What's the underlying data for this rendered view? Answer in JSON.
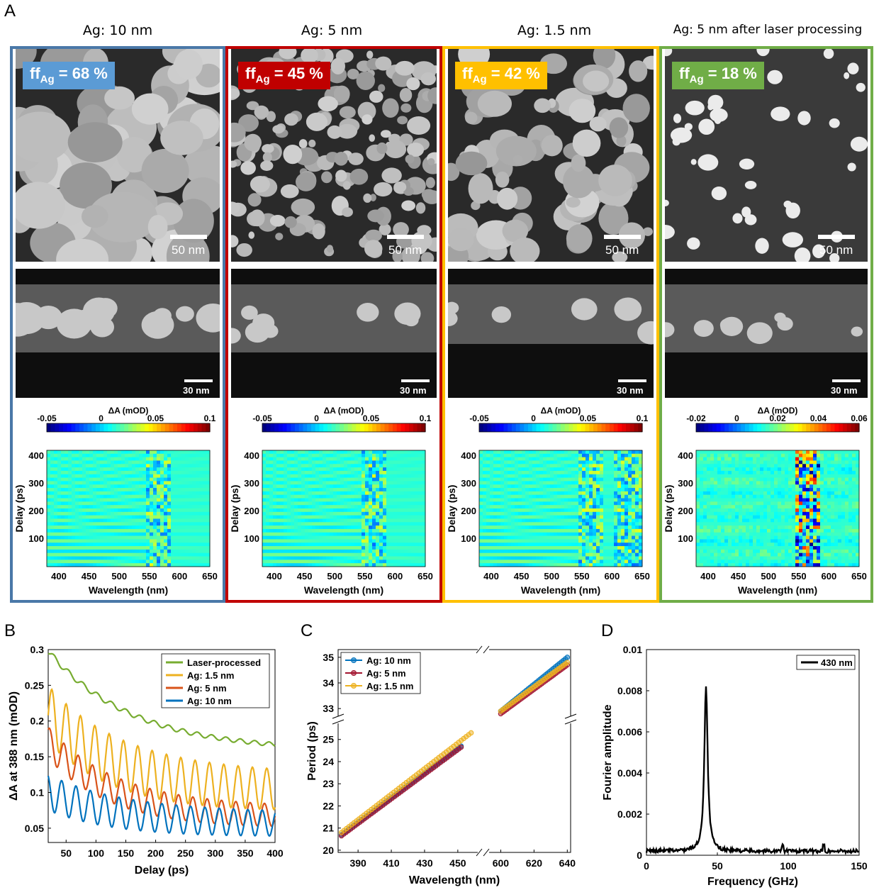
{
  "figure": {
    "panel_a_label": "A",
    "panel_b_label": "B",
    "panel_c_label": "C",
    "panel_d_label": "D"
  },
  "columns": [
    {
      "title": "Ag: 10 nm",
      "ff_label": "ff",
      "ff_sub": "Ag",
      "ff_value": " = 68 %",
      "color": "#4a78a8",
      "badge_color": "#5b9bd5",
      "sem_scale": "50 nm",
      "tem_scale": "30 nm",
      "cbar_label": "ΔA (mOD)",
      "cbar_ticks": [
        "-0.05",
        "0",
        "0.05",
        "0.1"
      ],
      "ylabel": "Delay (ps)",
      "xlabel": "Wavelength (nm)",
      "yticks": [
        "400",
        "300",
        "200",
        "100"
      ],
      "xticks": [
        "400",
        "450",
        "500",
        "550",
        "600",
        "650"
      ]
    },
    {
      "title": "Ag: 5 nm",
      "ff_label": "ff",
      "ff_sub": "Ag",
      "ff_value": " = 45 %",
      "color": "#c00000",
      "badge_color": "#c00000",
      "sem_scale": "50 nm",
      "tem_scale": "30 nm",
      "cbar_label": "ΔA (mOD)",
      "cbar_ticks": [
        "-0.05",
        "0",
        "0.05",
        "0.1"
      ],
      "ylabel": "Delay (ps)",
      "xlabel": "Wavelength (nm)",
      "yticks": [
        "400",
        "300",
        "200",
        "100"
      ],
      "xticks": [
        "400",
        "450",
        "500",
        "550",
        "600",
        "650"
      ]
    },
    {
      "title": "Ag: 1.5 nm",
      "ff_label": "ff",
      "ff_sub": "Ag",
      "ff_value": " = 42 %",
      "color": "#ffc000",
      "badge_color": "#ffc000",
      "sem_scale": "50 nm",
      "tem_scale": "30 nm",
      "cbar_label": "ΔA (mOD)",
      "cbar_ticks": [
        "-0.05",
        "0",
        "0.05",
        "0.1"
      ],
      "ylabel": "Delay (ps)",
      "xlabel": "Wavelength (nm)",
      "yticks": [
        "400",
        "300",
        "200",
        "100"
      ],
      "xticks": [
        "400",
        "450",
        "500",
        "550",
        "600",
        "650"
      ]
    },
    {
      "title": "Ag: 5 nm after laser processing",
      "ff_label": "ff",
      "ff_sub": "Ag",
      "ff_value": " = 18 %",
      "color": "#70ad47",
      "badge_color": "#70ad47",
      "sem_scale": "50 nm",
      "tem_scale": "30 nm",
      "cbar_label": "ΔA (mOD)",
      "cbar_ticks": [
        "-0.02",
        "0",
        "0.02",
        "0.04",
        "0.06"
      ],
      "ylabel": "Delay (ps)",
      "xlabel": "Wavelength (nm)",
      "yticks": [
        "400",
        "300",
        "200",
        "100"
      ],
      "xticks": [
        "400",
        "450",
        "500",
        "550",
        "600",
        "650"
      ]
    }
  ],
  "chart_data": [
    {
      "panel": "B",
      "type": "line",
      "xlabel": "Delay (ps)",
      "ylabel": "ΔA at 388 nm (mOD)",
      "xlim": [
        20,
        400
      ],
      "ylim": [
        0.03,
        0.3
      ],
      "xticks": [
        50,
        100,
        150,
        200,
        250,
        300,
        350,
        400
      ],
      "yticks": [
        0.05,
        0.1,
        0.15,
        0.2,
        0.25,
        0.3
      ],
      "ytick_labels": [
        "0.05",
        "0.1",
        "0.15",
        "0.2",
        "0.25",
        "0.3"
      ],
      "legend_position": "top-right",
      "period_ps": 24,
      "series": [
        {
          "name": "Laser-processed",
          "color": "#77ac30",
          "start": 0.298,
          "end": 0.158,
          "decay": 140,
          "osc_amp": 0.004
        },
        {
          "name": "Ag: 1.5 nm",
          "color": "#edb120",
          "start": 0.21,
          "end": 0.1,
          "decay": 120,
          "osc_amp": 0.04
        },
        {
          "name": "Ag: 5 nm",
          "color": "#d95319",
          "start": 0.17,
          "end": 0.065,
          "decay": 110,
          "osc_amp": 0.022
        },
        {
          "name": "Ag: 10 nm",
          "color": "#0072bd",
          "start": 0.1,
          "end": 0.055,
          "decay": 120,
          "osc_amp": 0.025
        }
      ]
    },
    {
      "panel": "C",
      "type": "scatter",
      "xlabel": "Wavelength (nm)",
      "ylabel": "Period (ps)",
      "xticks_left": [
        390,
        410,
        430,
        450
      ],
      "xticks_right": [
        600,
        620,
        640
      ],
      "yticks_lower": [
        20,
        21,
        22,
        23,
        24,
        25
      ],
      "yticks_upper": [
        33,
        34,
        35
      ],
      "legend_position": "top-left",
      "series": [
        {
          "name": "Ag: 10 nm",
          "color": "#0072bd",
          "left_x": [
            380,
            452
          ],
          "left_y": [
            20.7,
            24.7
          ],
          "right_x": [
            600,
            640
          ],
          "right_y": [
            32.9,
            35.0
          ]
        },
        {
          "name": "Ag: 5 nm",
          "color": "#a2142f",
          "left_x": [
            380,
            452
          ],
          "left_y": [
            20.65,
            24.65
          ],
          "right_x": [
            600,
            640
          ],
          "right_y": [
            32.8,
            34.7
          ]
        },
        {
          "name": "Ag: 1.5 nm",
          "color": "#edb120",
          "left_x": [
            380,
            458
          ],
          "left_y": [
            20.8,
            25.3
          ],
          "right_x": [
            600,
            640
          ],
          "right_y": [
            32.9,
            34.8
          ]
        }
      ]
    },
    {
      "panel": "D",
      "type": "line",
      "xlabel": "Frequency (GHz)",
      "ylabel": "Fourier amplitude",
      "xlim": [
        0,
        150
      ],
      "ylim": [
        0,
        0.01
      ],
      "xticks": [
        0,
        50,
        100,
        150
      ],
      "yticks": [
        0,
        0.002,
        0.004,
        0.006,
        0.008,
        0.01
      ],
      "ytick_labels": [
        "0",
        "0.002",
        "0.004",
        "0.006",
        "0.008",
        "0.01"
      ],
      "legend_position": "top-right",
      "series": [
        {
          "name": "430 nm",
          "color": "#000000",
          "peak_x": 42,
          "peak_y": 0.0081,
          "baseline": 0.0002
        }
      ]
    }
  ]
}
